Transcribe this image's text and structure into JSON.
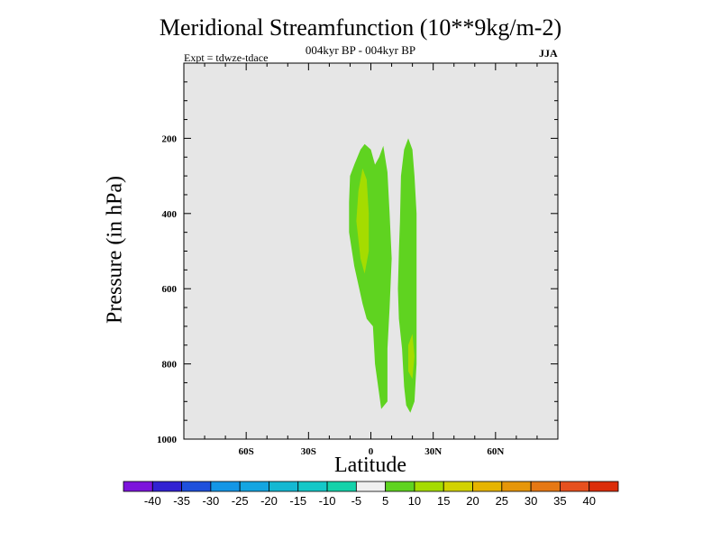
{
  "chart_data": {
    "type": "contour",
    "title": "Meridional Streamfunction (10**9kg/m-2)",
    "subtitle": "004kyr BP - 004kyr BP",
    "experiment": "Expt = tdwze-tdace",
    "season": "JJA",
    "xlabel": "Latitude",
    "ylabel": "Pressure (in hPa)",
    "xlim": [
      -90,
      90
    ],
    "ylim": [
      1000,
      0
    ],
    "x_ticks": [
      {
        "value": -60,
        "label": "60S"
      },
      {
        "value": -30,
        "label": "30S"
      },
      {
        "value": 0,
        "label": "0"
      },
      {
        "value": 30,
        "label": "30N"
      },
      {
        "value": 60,
        "label": "60N"
      }
    ],
    "y_ticks": [
      {
        "value": 200,
        "label": "200"
      },
      {
        "value": 400,
        "label": "400"
      },
      {
        "value": 600,
        "label": "600"
      },
      {
        "value": 800,
        "label": "800"
      },
      {
        "value": 1000,
        "label": "1000"
      }
    ],
    "background_color": "#e6e6e6",
    "regions": [
      {
        "name": "cell-west-5-10",
        "level": "5 to 10",
        "color": "#5fd320",
        "points": [
          [
            -10.5,
            370
          ],
          [
            -10,
            300
          ],
          [
            -8,
            270
          ],
          [
            -5,
            230
          ],
          [
            -3,
            215
          ],
          [
            0,
            230
          ],
          [
            2,
            270
          ],
          [
            4,
            250
          ],
          [
            6,
            220
          ],
          [
            8,
            290
          ],
          [
            9,
            400
          ],
          [
            10,
            520
          ],
          [
            9,
            650
          ],
          [
            8,
            760
          ],
          [
            8,
            900
          ],
          [
            5,
            920
          ],
          [
            3,
            840
          ],
          [
            2,
            800
          ],
          [
            1,
            700
          ],
          [
            -2,
            680
          ],
          [
            -4,
            640
          ],
          [
            -6,
            590
          ],
          [
            -8,
            540
          ],
          [
            -10.5,
            450
          ]
        ]
      },
      {
        "name": "cell-west-10-15",
        "level": "10 to 15",
        "color": "#a5dc00",
        "points": [
          [
            -6,
            340
          ],
          [
            -4,
            280
          ],
          [
            -2,
            310
          ],
          [
            -1,
            400
          ],
          [
            -1,
            500
          ],
          [
            -3,
            560
          ],
          [
            -5,
            520
          ],
          [
            -7,
            420
          ]
        ]
      },
      {
        "name": "cell-east-5-10",
        "level": "5 to 10",
        "color": "#5fd320",
        "points": [
          [
            14.5,
            300
          ],
          [
            16,
            230
          ],
          [
            18,
            200
          ],
          [
            20,
            230
          ],
          [
            21,
            300
          ],
          [
            22,
            400
          ],
          [
            22,
            520
          ],
          [
            22,
            600
          ],
          [
            22,
            700
          ],
          [
            22,
            800
          ],
          [
            21,
            900
          ],
          [
            19,
            930
          ],
          [
            17,
            910
          ],
          [
            16,
            860
          ],
          [
            15,
            760
          ],
          [
            13.5,
            680
          ],
          [
            13,
            600
          ],
          [
            13.5,
            500
          ],
          [
            14,
            420
          ]
        ]
      },
      {
        "name": "cell-east-10-15",
        "level": "10 to 15",
        "color": "#a5dc00",
        "points": [
          [
            18,
            750
          ],
          [
            20,
            720
          ],
          [
            21,
            780
          ],
          [
            20,
            840
          ],
          [
            18,
            820
          ]
        ]
      }
    ],
    "colorbar": {
      "colors": [
        "#7d14dc",
        "#3222d2",
        "#1e50dc",
        "#1496e6",
        "#14a5e1",
        "#14b8d2",
        "#14c8c8",
        "#14d2aa",
        "#f0f0f0",
        "#5fd320",
        "#a5dc00",
        "#d2d200",
        "#e6b400",
        "#e6960a",
        "#e67814",
        "#e6501e",
        "#dc2d0a"
      ],
      "labels": [
        "-40",
        "-35",
        "-30",
        "-25",
        "-20",
        "-15",
        "-10",
        "-5",
        "5",
        "10",
        "15",
        "20",
        "25",
        "30",
        "35",
        "40"
      ]
    }
  }
}
